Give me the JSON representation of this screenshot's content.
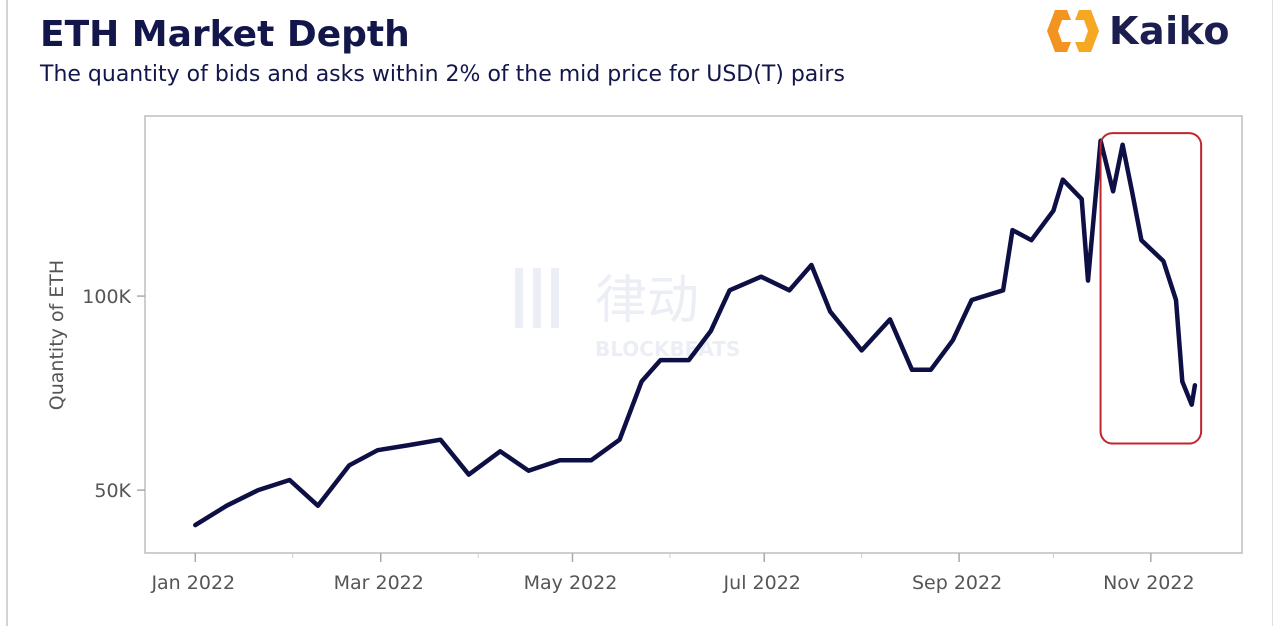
{
  "header": {
    "title": "ETH Market Depth",
    "subtitle": "The quantity of bids and asks within 2% of the mid price for USD(T) pairs",
    "logo_text": "Kaiko"
  },
  "watermark": {
    "text": "律动",
    "subtext": "BLOCKBEATS"
  },
  "colors": {
    "line": "#0d0f45",
    "annotation": "#c0262c",
    "title": "#12164a",
    "logo_orange": "#f39422"
  },
  "chart_data": {
    "type": "line",
    "title": "ETH Market Depth",
    "xlabel": "",
    "ylabel": "Quantity of ETH",
    "ylim": [
      33800,
      146400
    ],
    "xlim": [
      "2021-12-16",
      "2022-11-30"
    ],
    "yticks": [
      {
        "value": 50000,
        "label": "50K"
      },
      {
        "value": 100000,
        "label": "100K"
      }
    ],
    "xticks": [
      {
        "value": "2022-01-01",
        "label": "Jan 2022"
      },
      {
        "value": "2022-03-01",
        "label": "Mar 2022"
      },
      {
        "value": "2022-05-01",
        "label": "May 2022"
      },
      {
        "value": "2022-07-01",
        "label": "Jul 2022"
      },
      {
        "value": "2022-09-01",
        "label": "Sep 2022"
      },
      {
        "value": "2022-11-01",
        "label": "Nov 2022"
      }
    ],
    "grid": false,
    "series": [
      {
        "name": "ETH market depth",
        "x": [
          "2022-01-01",
          "2022-01-11",
          "2022-01-21",
          "2022-01-31",
          "2022-02-09",
          "2022-02-19",
          "2022-02-28",
          "2022-03-10",
          "2022-03-20",
          "2022-03-29",
          "2022-04-08",
          "2022-04-17",
          "2022-04-27",
          "2022-05-07",
          "2022-05-16",
          "2022-05-23",
          "2022-05-29",
          "2022-06-07",
          "2022-06-14",
          "2022-06-20",
          "2022-06-30",
          "2022-07-09",
          "2022-07-16",
          "2022-07-22",
          "2022-08-01",
          "2022-08-10",
          "2022-08-17",
          "2022-08-23",
          "2022-08-30",
          "2022-09-05",
          "2022-09-15",
          "2022-09-18",
          "2022-09-24",
          "2022-10-01",
          "2022-10-04",
          "2022-10-10",
          "2022-10-12",
          "2022-10-16",
          "2022-10-20",
          "2022-10-23",
          "2022-10-26",
          "2022-10-29",
          "2022-11-05",
          "2022-11-09",
          "2022-11-11",
          "2022-11-14",
          "2022-11-15"
        ],
        "values": [
          41000,
          46000,
          50000,
          52600,
          46000,
          56400,
          60300,
          61600,
          63000,
          54000,
          60000,
          55000,
          57700,
          57700,
          63000,
          78000,
          83500,
          83500,
          91000,
          101500,
          105000,
          101500,
          108000,
          96000,
          86000,
          94000,
          81000,
          81000,
          88600,
          99000,
          101500,
          117000,
          114400,
          122000,
          130000,
          125000,
          104000,
          140000,
          127000,
          139000,
          127000,
          114400,
          109000,
          99000,
          78000,
          72000,
          77000
        ]
      }
    ],
    "annotations": [
      {
        "type": "rect",
        "x0": "2022-10-16",
        "x1": "2022-11-17",
        "y0": 62000,
        "y1": 142000
      }
    ]
  }
}
